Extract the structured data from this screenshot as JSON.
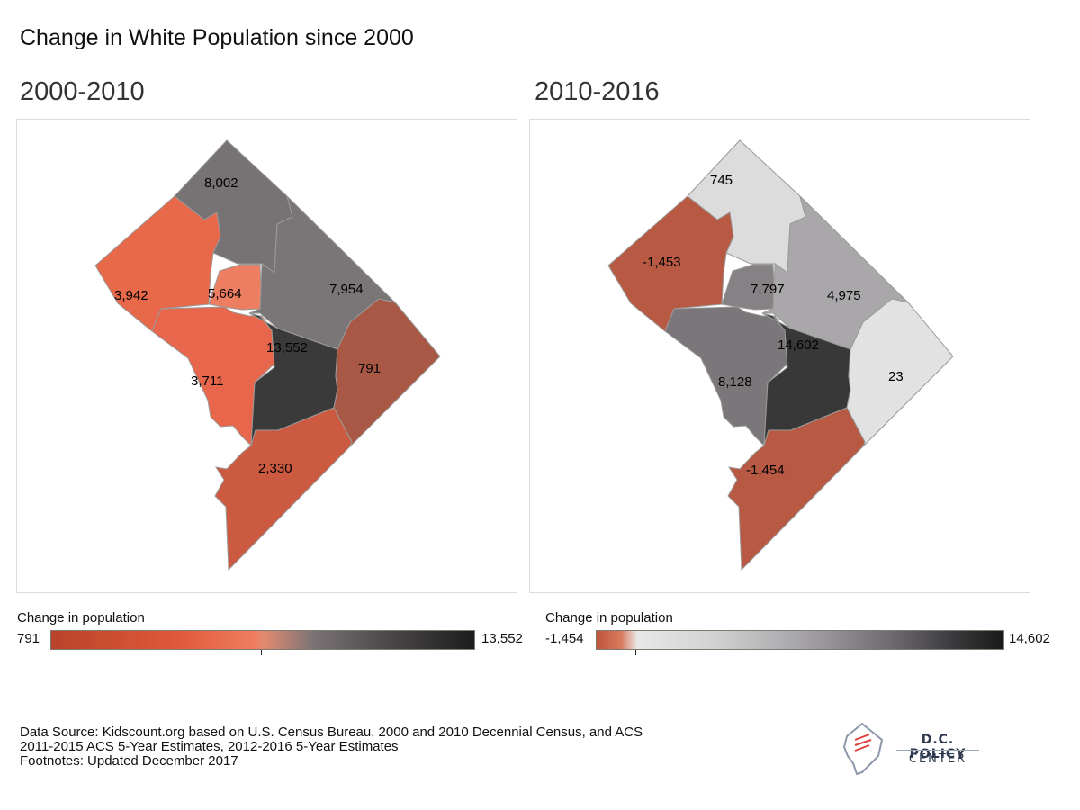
{
  "title": "Change in White Population since 2000",
  "panels": [
    {
      "title": "2000-2010",
      "legend": {
        "title": "Change in population",
        "min": "791",
        "max": "13,552",
        "min_value": 791,
        "max_value": 13552
      },
      "wards": [
        {
          "ward": "northwest",
          "label": "3,942",
          "value": 3942,
          "color": "#e8684a"
        },
        {
          "ward": "far-north",
          "label": "8,002",
          "value": 8002,
          "color": "#777274"
        },
        {
          "ward": "center-small",
          "label": "5,664",
          "value": 5664,
          "color": "#ee7e62"
        },
        {
          "ward": "north-east-mid",
          "label": "7,954",
          "value": 7954,
          "color": "#7a7577"
        },
        {
          "ward": "west-central",
          "label": "3,711",
          "value": 3711,
          "color": "#e8664b"
        },
        {
          "ward": "downtown",
          "label": "13,552",
          "value": 13552,
          "color": "#3a3a3a"
        },
        {
          "ward": "east-corner",
          "label": "791",
          "value": 791,
          "color": "#a85844"
        },
        {
          "ward": "southeast",
          "label": "2,330",
          "value": 2330,
          "color": "#cc5a40"
        }
      ]
    },
    {
      "title": "2010-2016",
      "legend": {
        "title": "Change in population",
        "min": "-1,454",
        "max": "14,602",
        "min_value": -1454,
        "max_value": 14602
      },
      "wards": [
        {
          "ward": "northwest",
          "label": "-1,453",
          "value": -1453,
          "color": "#b85a43"
        },
        {
          "ward": "far-north",
          "label": "745",
          "value": 745,
          "color": "#dcdcdc"
        },
        {
          "ward": "center-small",
          "label": "7,797",
          "value": 7797,
          "color": "#858185"
        },
        {
          "ward": "north-east-mid",
          "label": "4,975",
          "value": 4975,
          "color": "#a9a7aa"
        },
        {
          "ward": "west-central",
          "label": "8,128",
          "value": 8128,
          "color": "#7a767a"
        },
        {
          "ward": "downtown",
          "label": "14,602",
          "value": 14602,
          "color": "#383838"
        },
        {
          "ward": "east-corner",
          "label": "23",
          "value": 23,
          "color": "#e2e2e2"
        },
        {
          "ward": "southeast",
          "label": "-1,454",
          "value": -1454,
          "color": "#b85a43"
        }
      ]
    }
  ],
  "source": {
    "line1": "Data Source: Kidscount.org based on U.S. Census Bureau, 2000 and 2010 Decennial Census, and ACS",
    "line2": "2011-2015 ACS 5-Year Estimates, 2012-2016 5-Year Estimates",
    "line3": "Footnotes: Updated December 2017"
  },
  "logo": {
    "line1": "D.C. POLICY",
    "line2": "CENTER"
  }
}
